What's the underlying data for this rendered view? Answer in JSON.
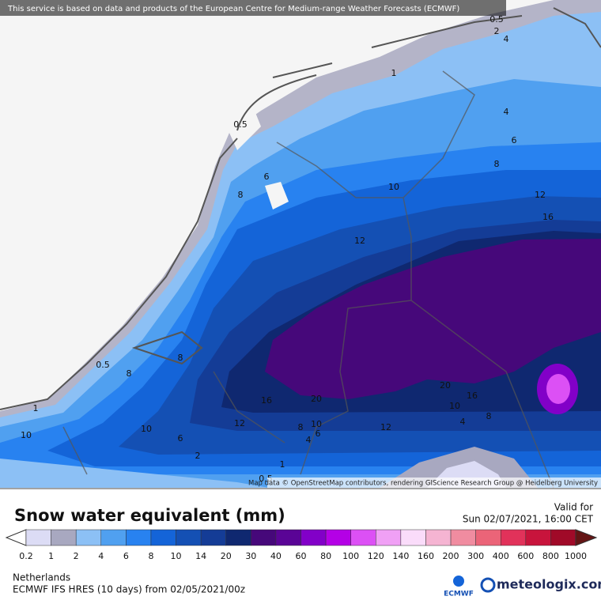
{
  "header": {
    "notice": "This service is based on data and products of the European Centre for Medium-range Weather Forecasts (ECMWF)"
  },
  "map": {
    "attribution": "Map data © OpenStreetMap contributors, rendering GIScience Research Group @ Heidelberg University",
    "contour_labels": [
      0.5,
      2,
      4,
      1,
      4,
      0.5,
      6,
      8,
      6,
      8,
      10,
      12,
      16,
      12,
      0.5,
      8,
      8,
      16,
      20,
      20,
      16,
      10,
      8,
      4,
      12,
      1,
      10,
      10,
      12,
      6,
      8,
      10,
      6,
      4,
      2,
      1,
      0.5
    ]
  },
  "legend": {
    "title": "Snow water equivalent (mm)",
    "valid_label": "Valid for",
    "valid_time": "Sun 02/07/2021, 16:00 CET",
    "ticks": [
      0.2,
      1,
      2,
      4,
      6,
      8,
      10,
      14,
      20,
      30,
      40,
      60,
      80,
      100,
      120,
      140,
      160,
      200,
      300,
      400,
      600,
      800,
      1000
    ],
    "colors": [
      "#dcdcf5",
      "#a8a8c0",
      "#8cc0f5",
      "#50a0f0",
      "#2882f0",
      "#1464d8",
      "#1450b4",
      "#143c96",
      "#0f2870",
      "#46087a",
      "#5a0496",
      "#8200c8",
      "#b400e6",
      "#dc50f5",
      "#f0a0f5",
      "#fadcfa",
      "#f5b4d2",
      "#f08ca0",
      "#eb6478",
      "#e1325a",
      "#c8143c",
      "#a00a28"
    ]
  },
  "footer": {
    "region": "Netherlands",
    "model": "ECMWF IFS HRES (10 days) from 02/05/2021/00z"
  },
  "brand": {
    "ecmwf": "ECMWF",
    "site": "meteologix.com"
  }
}
